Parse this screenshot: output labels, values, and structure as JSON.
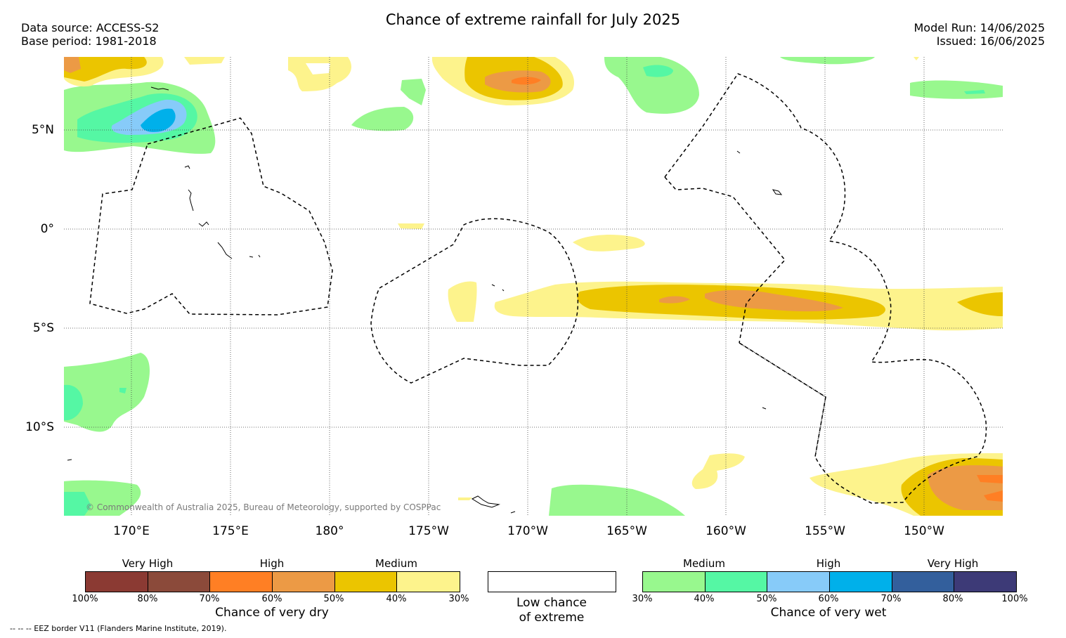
{
  "header": {
    "title": "Chance of extreme rainfall for July 2025",
    "data_source": "Data source: ACCESS-S2",
    "base_period": "Base period: 1981-2018",
    "model_run": "Model Run: 14/06/2025",
    "issued": "Issued: 16/06/2025"
  },
  "map": {
    "lat_labels": [
      "5°N",
      "0°",
      "5°S",
      "10°S"
    ],
    "lon_labels": [
      "170°E",
      "175°E",
      "180°",
      "175°W",
      "170°W",
      "165°W",
      "160°W",
      "155°W",
      "150°W"
    ],
    "copyright": "© Commonwealth of Australia 2025, Bureau of Meteorology, supported by COSPPac"
  },
  "legend": {
    "dry": {
      "categories": [
        "Very High",
        "High",
        "Medium"
      ],
      "ticks": [
        "100%",
        "80%",
        "70%",
        "60%",
        "50%",
        "40%",
        "30%"
      ],
      "colors": [
        "#8b3a33",
        "#8b4a3a",
        "#ff7f24",
        "#ec9a45",
        "#ebc500",
        "#fdf38c"
      ],
      "title": "Chance of very dry"
    },
    "low": {
      "line1": "Low chance",
      "line2": "of extreme",
      "color": "#ffffff"
    },
    "wet": {
      "categories": [
        "Medium",
        "High",
        "Very High"
      ],
      "ticks": [
        "30%",
        "40%",
        "50%",
        "60%",
        "70%",
        "80%",
        "100%"
      ],
      "colors": [
        "#98f88e",
        "#55f7a4",
        "#87cbf9",
        "#00b0ea",
        "#335f9c",
        "#3d3a77"
      ],
      "title": "Chance of very wet"
    },
    "eez_note": "--  --  -- EEZ border V11 (Flanders Marine Institute, 2019)."
  }
}
